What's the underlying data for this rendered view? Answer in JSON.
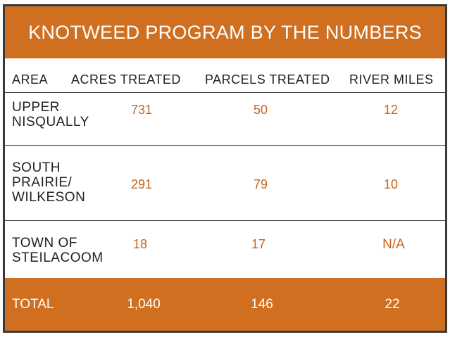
{
  "header": {
    "title": "KNOTWEED PROGRAM BY THE NUMBERS"
  },
  "table": {
    "columns": [
      "AREA",
      "ACRES TREATED",
      "PARCELS TREATED",
      "RIVER MILES"
    ],
    "rows": [
      {
        "area": [
          "UPPER",
          "NISQUALLY"
        ],
        "acres": "731",
        "parcels": "50",
        "river_miles": "12"
      },
      {
        "area": [
          "SOUTH",
          "PRAIRIE/",
          "WILKESON"
        ],
        "acres": "291",
        "parcels": "79",
        "river_miles": "10"
      },
      {
        "area": [
          "TOWN OF",
          "STEILACOOM"
        ],
        "acres": "18",
        "parcels": "17",
        "river_miles": "N/A"
      }
    ],
    "total": {
      "area": "TOTAL",
      "acres": "1,040",
      "parcels": "146",
      "river_miles": "22"
    }
  }
}
